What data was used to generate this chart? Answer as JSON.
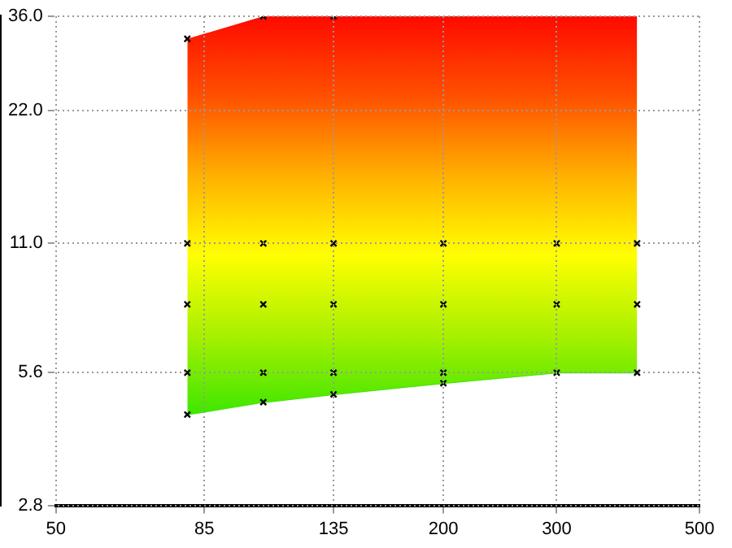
{
  "chart_data": {
    "type": "area",
    "log": "xy",
    "grid": true,
    "legend": false,
    "xlim": [
      50,
      500
    ],
    "ylim": [
      2.8,
      36
    ],
    "xticks": [
      50,
      85,
      135,
      200,
      300,
      500
    ],
    "yticks": [
      {
        "value": 2.8,
        "label": "2.8"
      },
      {
        "value": 5.6,
        "label": "5.6"
      },
      {
        "value": 11,
        "label": "11.0"
      },
      {
        "value": 22,
        "label": "22.0"
      },
      {
        "value": 36,
        "label": "36.0"
      }
    ],
    "series": [
      {
        "color": "#ffff00",
        "colors": [
          "#ff0a00",
          "#ff5000",
          "#ffb000",
          "#ffff00",
          "#a8f000",
          "#3ee600"
        ],
        "x": [
          80,
          105,
          135,
          200,
          300,
          400
        ],
        "values": [
          32,
          36,
          36,
          36,
          36,
          36
        ]
      },
      {
        "type": "line",
        "color": "#3ee600",
        "x": [
          80,
          105,
          135,
          200,
          300,
          400
        ],
        "values": [
          4.5,
          4.8,
          5.0,
          5.3,
          5.6,
          5.6
        ]
      },
      {
        "type": "scatter",
        "color": "#000000",
        "marker": "cross",
        "x": [
          80,
          80,
          80,
          80,
          80,
          105,
          105,
          105,
          105,
          105,
          135,
          135,
          135,
          135,
          135,
          200,
          200,
          200,
          200,
          300,
          300,
          300,
          400,
          400,
          400
        ],
        "values": [
          32,
          11,
          8,
          5.6,
          4.5,
          36,
          11,
          8,
          5.6,
          4.8,
          36,
          11,
          8,
          5.6,
          5.0,
          11,
          8,
          5.6,
          5.3,
          11,
          8,
          5.6,
          11,
          8,
          5.6
        ]
      }
    ]
  }
}
